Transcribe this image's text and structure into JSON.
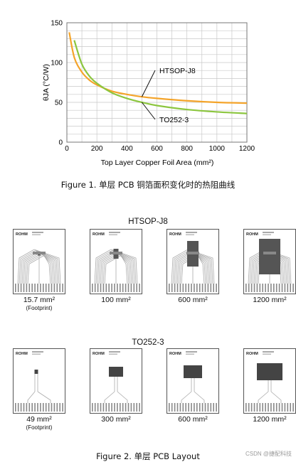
{
  "chart_data": {
    "type": "line",
    "title": "",
    "xlabel": "Top Layer Copper Foil Area (mm²)",
    "ylabel": "θJA (°C/W)",
    "xlim": [
      0,
      1200
    ],
    "ylim": [
      0,
      150
    ],
    "x_ticks": [
      0,
      200,
      400,
      600,
      800,
      1000,
      1200
    ],
    "y_ticks": [
      0,
      50,
      100,
      150
    ],
    "grid": true,
    "series": [
      {
        "name": "HTSOP-J8",
        "color": "#f4a42a",
        "x": [
          15.7,
          50,
          100,
          150,
          200,
          300,
          400,
          500,
          600,
          800,
          1000,
          1200
        ],
        "y": [
          138,
          106,
          88,
          78,
          72,
          64,
          60,
          57,
          55,
          52,
          50,
          49
        ]
      },
      {
        "name": "TO252-3",
        "color": "#8cc63f",
        "x": [
          49,
          100,
          150,
          200,
          300,
          400,
          500,
          600,
          800,
          1000,
          1200
        ],
        "y": [
          128,
          98,
          83,
          74,
          62,
          55,
          50,
          46,
          41,
          38,
          36
        ]
      }
    ]
  },
  "figure1_caption": "Figure 1. 单层 PCB 铜箔面积变化时的热阻曲线",
  "htsop_title": "HTSOP-J8",
  "to252_title": "TO252-3",
  "htsop_areas": [
    {
      "label": "15.7 mm²",
      "note": "(Footprint)"
    },
    {
      "label": "100 mm²",
      "note": ""
    },
    {
      "label": "600 mm²",
      "note": ""
    },
    {
      "label": "1200 mm²",
      "note": ""
    }
  ],
  "to252_areas": [
    {
      "label": "49 mm²",
      "note": "(Footprint)"
    },
    {
      "label": "300 mm²",
      "note": ""
    },
    {
      "label": "600 mm²",
      "note": ""
    },
    {
      "label": "1200 mm²",
      "note": ""
    }
  ],
  "board_logo": "ROHM",
  "figure2_caption": "Figure 2. 单层 PCB Layout",
  "watermark": "CSDN @捷配科技"
}
